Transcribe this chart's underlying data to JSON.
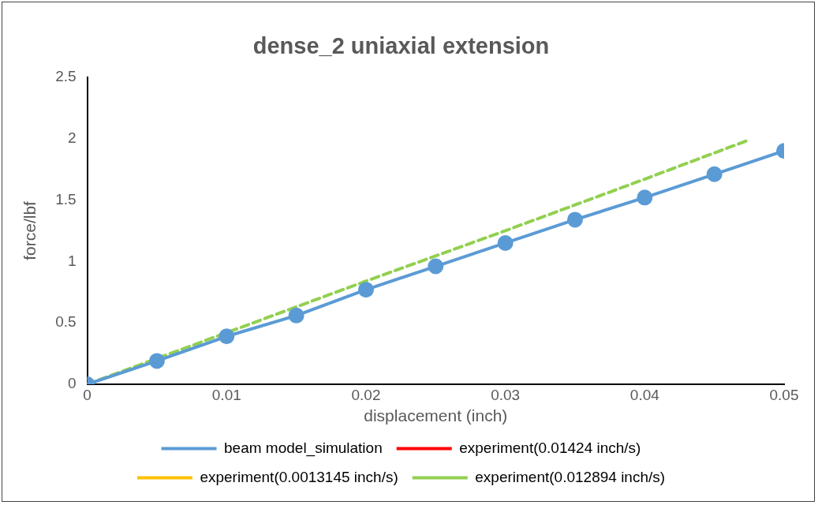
{
  "chart_data": {
    "type": "line",
    "title": "dense_2 uniaxial extension",
    "xlabel": "displacement (inch)",
    "ylabel": "force/lbf",
    "x": [
      0,
      0.005,
      0.01,
      0.015,
      0.02,
      0.025,
      0.03,
      0.035,
      0.04,
      0.045,
      0.05
    ],
    "xlim": [
      0,
      0.05
    ],
    "xticks": [
      0,
      0.01,
      0.02,
      0.03,
      0.04,
      0.05
    ],
    "ylim": [
      0,
      2.5
    ],
    "yticks": [
      0,
      0.5,
      1,
      1.5,
      2,
      2.5
    ],
    "grid": false,
    "legend": "bottom",
    "series": [
      {
        "name": "beam model_simulation",
        "color": "#5b9bd5",
        "marker": "circle",
        "line_style": "solid",
        "values": [
          0,
          0.19,
          0.39,
          0.56,
          0.77,
          0.96,
          1.15,
          1.34,
          1.52,
          1.71,
          1.9
        ]
      },
      {
        "name": "experiment(0.01424 inch/s)",
        "color": "#ff0000",
        "line_style": "solid",
        "values": [
          null,
          null,
          null,
          null,
          null,
          null,
          null,
          null,
          null,
          null,
          null
        ]
      },
      {
        "name": "experiment(0.0013145 inch/s)",
        "color": "#ffc000",
        "line_style": "dashed",
        "values": [
          null,
          null,
          null,
          null,
          null,
          null,
          null,
          null,
          null,
          null,
          null
        ]
      },
      {
        "name": "experiment(0.012894 inch/s)",
        "color": "#92d050",
        "line_style": "dashed",
        "x": [
          0,
          0.01,
          0.02,
          0.03,
          0.04,
          0.0475
        ],
        "values": [
          0,
          0.42,
          0.84,
          1.25,
          1.67,
          1.99
        ]
      }
    ]
  }
}
